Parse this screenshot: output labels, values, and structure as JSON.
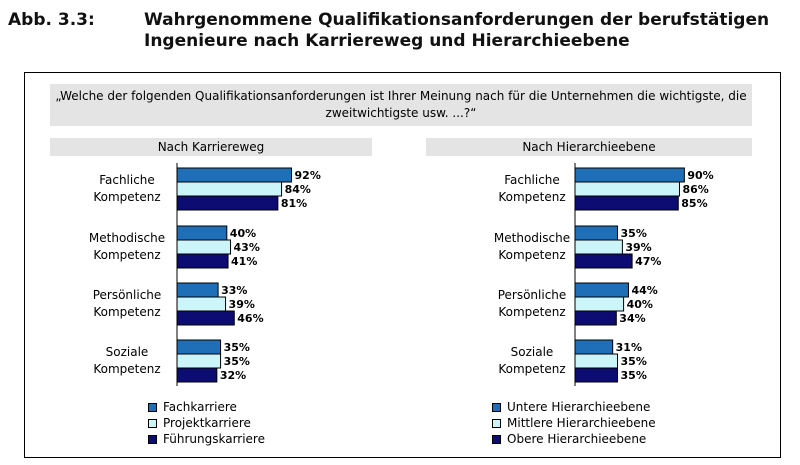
{
  "header": {
    "label": "Abb. 3.3:",
    "title": "Wahrgenommene Qualifikationsanforderungen der berufstätigen Ingenieure nach Karriereweg und Hierarchieebene"
  },
  "question": "„Welche der folgenden Qualifikationsanforderungen ist Ihrer Meinung nach für die Unternehmen die wichtigste, die zweitwichtigste usw. ...?“",
  "colors": {
    "series1": "#1f6fb8",
    "series2": "#ccf5fa",
    "series3": "#0c0c72"
  },
  "chart_data": [
    {
      "type": "bar",
      "title": "Nach Karriereweg",
      "categories": [
        [
          "Fachliche",
          "Kompetenz"
        ],
        [
          "Methodische",
          "Kompetenz"
        ],
        [
          "Persönliche",
          "Kompetenz"
        ],
        [
          "Soziale",
          "Kompetenz"
        ]
      ],
      "series": [
        {
          "name": "Fachkarriere",
          "values": [
            92,
            40,
            33,
            35
          ]
        },
        {
          "name": "Projektkarriere",
          "values": [
            84,
            43,
            39,
            35
          ]
        },
        {
          "name": "Führungskarriere",
          "values": [
            81,
            41,
            46,
            32
          ]
        }
      ],
      "unit": "%",
      "xlim": [
        0,
        100
      ],
      "legend": "bottom"
    },
    {
      "type": "bar",
      "title": "Nach Hierarchieebene",
      "categories": [
        [
          "Fachliche",
          "Kompetenz"
        ],
        [
          "Methodische",
          "Kompetenz"
        ],
        [
          "Persönliche",
          "Kompetenz"
        ],
        [
          "Soziale",
          "Kompetenz"
        ]
      ],
      "series": [
        {
          "name": "Untere Hierarchieebene",
          "values": [
            90,
            35,
            44,
            31
          ]
        },
        {
          "name": "Mittlere Hierarchieebene",
          "values": [
            86,
            39,
            40,
            35
          ]
        },
        {
          "name": "Obere Hierarchieebene",
          "values": [
            85,
            47,
            34,
            35
          ]
        }
      ],
      "unit": "%",
      "xlim": [
        0,
        100
      ],
      "legend": "bottom"
    }
  ]
}
